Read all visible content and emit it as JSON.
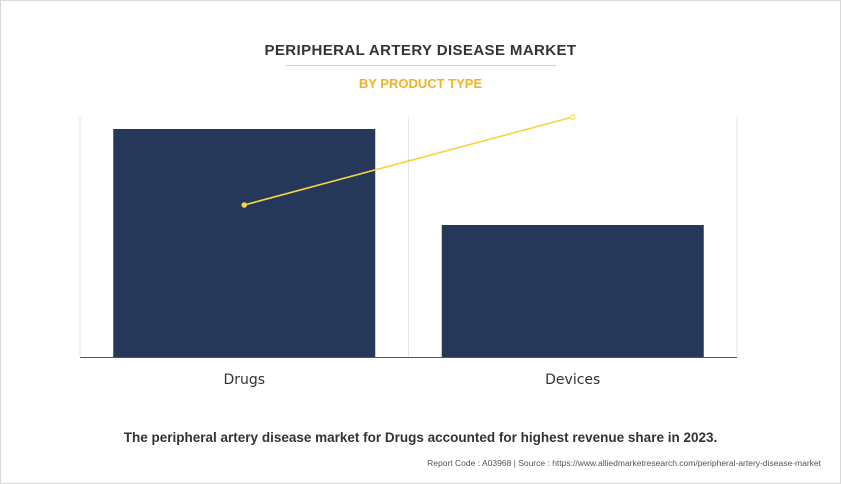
{
  "header": {
    "title": "PERIPHERAL ARTERY DISEASE MARKET",
    "subtitle": "BY PRODUCT TYPE"
  },
  "colors": {
    "bar": "#263859",
    "line": "#f5d442",
    "title": "#333333",
    "subtitle": "#f0b323"
  },
  "chart_data": {
    "type": "bar",
    "categories": [
      "Drugs",
      "Devices"
    ],
    "values": [
      228,
      132
    ],
    "overlay_line": {
      "type": "line",
      "values": [
        152,
        240
      ]
    },
    "ylim": [
      0,
      240
    ],
    "grid": "vertical category dividers only",
    "legend": "none"
  },
  "caption": "The peripheral artery disease market for Drugs accounted for highest revenue share in 2023.",
  "footer": "Report Code : A03968  |  Source : https://www.alliedmarketresearch.com/peripheral-artery-disease-market"
}
